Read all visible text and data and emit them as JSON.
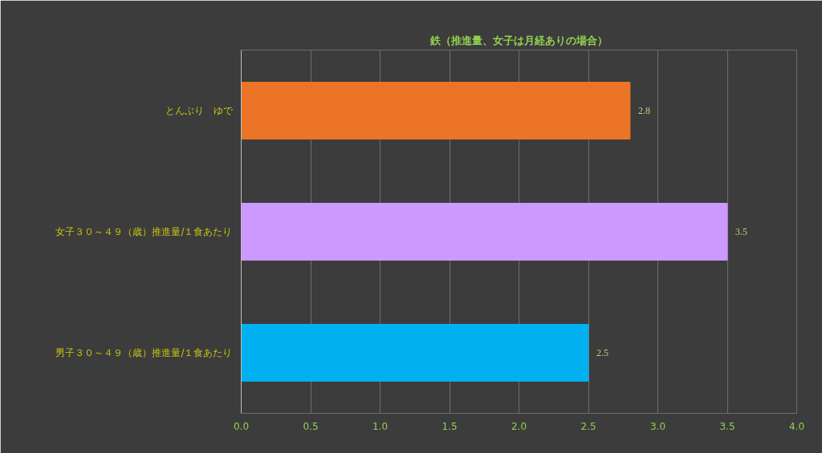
{
  "chart_data": {
    "type": "bar",
    "orientation": "horizontal",
    "title": "鉄（推進量、女子は月経ありの場合）",
    "categories": [
      "とんぶり　ゆで",
      "女子３０～４９（歳）推進量/１食あたり",
      "男子３０～４９（歳）推進量/１食あたり"
    ],
    "values": [
      2.8,
      3.5,
      2.5
    ],
    "colors": [
      "#ec7426",
      "#cc99ff",
      "#00b0f0"
    ],
    "xlim": [
      0,
      4
    ],
    "xticks": [
      {
        "value": 0,
        "label": "0.0"
      },
      {
        "value": 0.5,
        "label": "0.5"
      },
      {
        "value": 1,
        "label": "1.0"
      },
      {
        "value": 1.5,
        "label": "1.5"
      },
      {
        "value": 2,
        "label": "2.0"
      },
      {
        "value": 2.5,
        "label": "2.5"
      },
      {
        "value": 3,
        "label": "3.0"
      },
      {
        "value": 3.5,
        "label": "3.5"
      },
      {
        "value": 4,
        "label": "4.0"
      }
    ],
    "grid": "x",
    "data_labels": true
  }
}
